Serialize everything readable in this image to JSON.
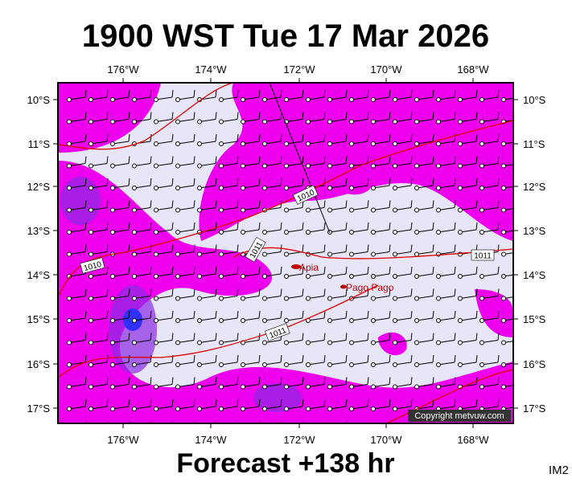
{
  "header": {
    "title": "1900 WST Tue 17 Mar 2026"
  },
  "footer": {
    "title": "Forecast +138 hr",
    "code": "IM2"
  },
  "map": {
    "lon_labels": [
      "176°W",
      "174°W",
      "172°W",
      "170°W",
      "168°W"
    ],
    "lat_labels": [
      "10°S",
      "11°S",
      "12°S",
      "13°S",
      "14°S",
      "15°S",
      "16°S",
      "17°S"
    ],
    "places": [
      "Apia",
      "Pago Pago"
    ],
    "isobar_labels": [
      "1010",
      "1010",
      "1011",
      "1011",
      "1011"
    ],
    "copyright": "Copyright metvuw.com"
  }
}
